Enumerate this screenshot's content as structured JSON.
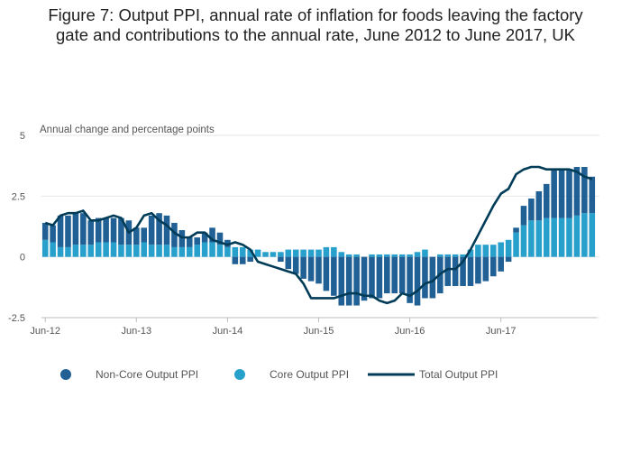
{
  "title_line1": "Figure 7: Output PPI, annual rate of inflation for foods leaving the factory",
  "title_line2": "gate and contributions to the annual rate, June 2012 to June 2017, UK",
  "colors": {
    "non_core": "#206095",
    "core": "#27a0cc",
    "total": "#003c57",
    "grid": "#e6e6e6",
    "axis": "#bdbdbd"
  },
  "chart_data": {
    "type": "bar",
    "stacked": true,
    "ylabel": "Annual change and percentage points",
    "ylim": [
      -2.5,
      5
    ],
    "yticks": [
      "5",
      "2.5",
      "0",
      "-2.5"
    ],
    "ytick_values": [
      5,
      2.5,
      0,
      -2.5
    ],
    "xtick_labels": [
      "Jun-12",
      "Jun-13",
      "Jun-14",
      "Jun-15",
      "Jun-16",
      "Jun-17"
    ],
    "xtick_index": [
      0,
      12,
      24,
      36,
      48,
      60
    ],
    "legend_position": "bottom",
    "series": [
      {
        "name": "Non-Core Output PPI",
        "type": "bar",
        "values": [
          0.7,
          0.7,
          1.3,
          1.3,
          1.3,
          1.3,
          1.0,
          1.0,
          1.0,
          1.0,
          1.1,
          1.0,
          0.7,
          0.6,
          1.2,
          1.3,
          1.2,
          1.0,
          0.7,
          0.4,
          0.3,
          0.4,
          0.6,
          0.5,
          0.3,
          -0.3,
          -0.3,
          -0.2,
          0.0,
          0.0,
          0.0,
          -0.2,
          -0.5,
          -0.7,
          -0.9,
          -1.0,
          -1.1,
          -1.4,
          -1.6,
          -2.0,
          -2.0,
          -2.0,
          -1.8,
          -1.7,
          -1.7,
          -1.5,
          -1.5,
          -1.5,
          -1.9,
          -2.0,
          -1.7,
          -1.7,
          -1.5,
          -1.2,
          -1.2,
          -1.2,
          -1.2,
          -1.1,
          -1.0,
          -0.8,
          -0.6,
          -0.2,
          0.2,
          0.8,
          0.9,
          1.2,
          1.4,
          2.0,
          2.0,
          2.0,
          2.0,
          1.9,
          1.5
        ]
      },
      {
        "name": "Core Output PPI",
        "type": "bar",
        "values": [
          0.7,
          0.6,
          0.4,
          0.4,
          0.5,
          0.5,
          0.5,
          0.6,
          0.6,
          0.6,
          0.5,
          0.5,
          0.5,
          0.6,
          0.5,
          0.5,
          0.5,
          0.4,
          0.4,
          0.4,
          0.5,
          0.6,
          0.6,
          0.5,
          0.4,
          0.4,
          0.4,
          0.3,
          0.3,
          0.2,
          0.2,
          0.2,
          0.3,
          0.3,
          0.3,
          0.3,
          0.3,
          0.4,
          0.4,
          0.2,
          0.1,
          0.1,
          0.0,
          0.1,
          0.1,
          0.1,
          0.1,
          0.1,
          0.1,
          0.2,
          0.3,
          0.0,
          0.1,
          0.1,
          0.1,
          0.1,
          0.3,
          0.5,
          0.5,
          0.5,
          0.6,
          0.7,
          1.0,
          1.3,
          1.5,
          1.5,
          1.6,
          1.6,
          1.6,
          1.6,
          1.7,
          1.8,
          1.8
        ]
      },
      {
        "name": "Total Output PPI",
        "type": "line",
        "values": [
          1.4,
          1.3,
          1.7,
          1.8,
          1.8,
          1.9,
          1.5,
          1.5,
          1.6,
          1.7,
          1.6,
          1.0,
          1.2,
          1.7,
          1.8,
          1.5,
          1.3,
          1.0,
          0.8,
          0.8,
          1.0,
          1.0,
          0.7,
          0.6,
          0.5,
          0.6,
          0.5,
          0.3,
          -0.2,
          -0.3,
          -0.4,
          -0.5,
          -0.6,
          -0.7,
          -1.1,
          -1.7,
          -1.7,
          -1.7,
          -1.7,
          -1.6,
          -1.5,
          -1.5,
          -1.6,
          -1.6,
          -1.8,
          -1.9,
          -1.8,
          -1.5,
          -1.6,
          -1.4,
          -1.1,
          -1.0,
          -0.7,
          -0.5,
          -0.5,
          -0.2,
          0.3,
          0.9,
          1.5,
          2.1,
          2.6,
          2.8,
          3.4,
          3.6,
          3.7,
          3.7,
          3.6,
          3.6,
          3.6,
          3.6,
          3.5,
          3.3,
          3.2
        ]
      }
    ]
  }
}
